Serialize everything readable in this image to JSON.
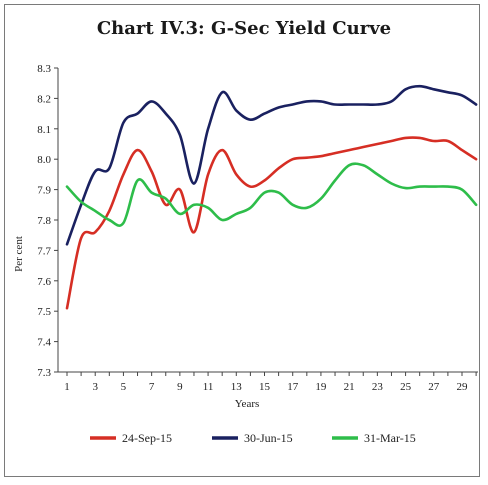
{
  "chart_data": {
    "type": "line",
    "title": "Chart IV.3: G-Sec Yield Curve",
    "xlabel": "Years",
    "ylabel": "Per cent",
    "xlim": [
      1,
      30
    ],
    "ylim": [
      7.3,
      8.3
    ],
    "y_ticks": [
      "7.3",
      "7.4",
      "7.5",
      "7.6",
      "7.7",
      "7.8",
      "7.9",
      "8.0",
      "8.1",
      "8.2",
      "8.3"
    ],
    "x_ticks": [
      "1",
      "3",
      "5",
      "7",
      "9",
      "11",
      "13",
      "15",
      "17",
      "19",
      "21",
      "23",
      "25",
      "27",
      "29"
    ],
    "grid": false,
    "legend_position": "bottom",
    "x": [
      1,
      2,
      3,
      4,
      5,
      6,
      7,
      8,
      9,
      10,
      11,
      12,
      13,
      14,
      15,
      16,
      17,
      18,
      19,
      20,
      21,
      22,
      23,
      24,
      25,
      26,
      27,
      28,
      29,
      30
    ],
    "series": [
      {
        "name": "24-Sep-15",
        "color": "#d62e24",
        "values": [
          7.51,
          7.74,
          7.76,
          7.83,
          7.95,
          8.03,
          7.96,
          7.85,
          7.9,
          7.76,
          7.95,
          8.03,
          7.95,
          7.91,
          7.93,
          7.97,
          8.0,
          8.005,
          8.01,
          8.02,
          8.03,
          8.04,
          8.05,
          8.06,
          8.07,
          8.07,
          8.06,
          8.06,
          8.03,
          8.0
        ]
      },
      {
        "name": "30-Jun-15",
        "color": "#1a2160",
        "values": [
          7.72,
          7.85,
          7.96,
          7.97,
          8.12,
          8.15,
          8.19,
          8.15,
          8.08,
          7.92,
          8.1,
          8.22,
          8.16,
          8.13,
          8.15,
          8.17,
          8.18,
          8.19,
          8.19,
          8.18,
          8.18,
          8.18,
          8.18,
          8.19,
          8.23,
          8.24,
          8.23,
          8.22,
          8.21,
          8.18
        ]
      },
      {
        "name": "31-Mar-15",
        "color": "#2ebd4a",
        "values": [
          7.91,
          7.86,
          7.83,
          7.8,
          7.79,
          7.93,
          7.89,
          7.87,
          7.82,
          7.85,
          7.84,
          7.8,
          7.82,
          7.84,
          7.89,
          7.89,
          7.85,
          7.84,
          7.87,
          7.93,
          7.98,
          7.98,
          7.95,
          7.92,
          7.905,
          7.91,
          7.91,
          7.91,
          7.9,
          7.85
        ]
      }
    ]
  }
}
